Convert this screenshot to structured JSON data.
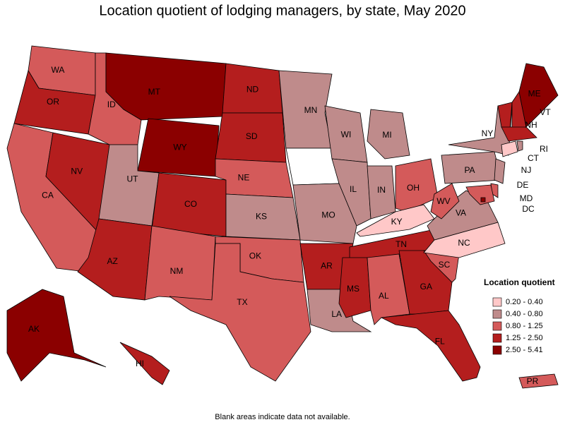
{
  "title": "Location quotient of lodging managers, by state, May 2020",
  "footnote": "Blank areas indicate data not available.",
  "legend": {
    "title": "Location quotient",
    "classes": [
      {
        "label": "0.20 - 0.40",
        "color": "#ffc8c8"
      },
      {
        "label": "0.40 - 0.80",
        "color": "#bf8b8b"
      },
      {
        "label": "0.80 - 1.25",
        "color": "#d45a5a"
      },
      {
        "label": "1.25 - 2.50",
        "color": "#b41e1e"
      },
      {
        "label": "2.50 - 5.41",
        "color": "#8b0000"
      }
    ]
  },
  "states": [
    {
      "label": "WA",
      "class": 2
    },
    {
      "label": "OR",
      "class": 3
    },
    {
      "label": "CA",
      "class": 2
    },
    {
      "label": "NV",
      "class": 3
    },
    {
      "label": "ID",
      "class": 2
    },
    {
      "label": "MT",
      "class": 4
    },
    {
      "label": "WY",
      "class": 4
    },
    {
      "label": "UT",
      "class": 1
    },
    {
      "label": "AZ",
      "class": 3
    },
    {
      "label": "CO",
      "class": 3
    },
    {
      "label": "NM",
      "class": 2
    },
    {
      "label": "ND",
      "class": 3
    },
    {
      "label": "SD",
      "class": 3
    },
    {
      "label": "NE",
      "class": 2
    },
    {
      "label": "KS",
      "class": 1
    },
    {
      "label": "OK",
      "class": 2
    },
    {
      "label": "TX",
      "class": 2
    },
    {
      "label": "MN",
      "class": 1
    },
    {
      "label": null,
      "class": null
    },
    {
      "label": "MO",
      "class": 1
    },
    {
      "label": "AR",
      "class": 3
    },
    {
      "label": "LA",
      "class": 1
    },
    {
      "label": "WI",
      "class": 1
    },
    {
      "label": "IL",
      "class": 1
    },
    {
      "label": "MI",
      "class": 1
    },
    {
      "label": "IN",
      "class": 1
    },
    {
      "label": "OH",
      "class": 2
    },
    {
      "label": "KY",
      "class": 0
    },
    {
      "label": "TN",
      "class": 3
    },
    {
      "label": "MS",
      "class": 3
    },
    {
      "label": "AL",
      "class": 2
    },
    {
      "label": "GA",
      "class": 3
    },
    {
      "label": "FL",
      "class": 3
    },
    {
      "label": "SC",
      "class": 2
    },
    {
      "label": "NC",
      "class": 0
    },
    {
      "label": "VA",
      "class": 1
    },
    {
      "label": "WV",
      "class": 2
    },
    {
      "label": "PA",
      "class": 1
    },
    {
      "label": "NY",
      "class": 1
    },
    {
      "label": "VT",
      "class": 3
    },
    {
      "label": "NH",
      "class": 3
    },
    {
      "label": "ME",
      "class": 4
    },
    {
      "label": null,
      "class": 3
    },
    {
      "label": "CT",
      "class": 0
    },
    {
      "label": "RI",
      "class": 1
    },
    {
      "label": "NJ",
      "class": 1
    },
    {
      "label": "DE",
      "class": 2
    },
    {
      "label": "MD",
      "class": 2
    },
    {
      "label": "DC",
      "class": 4
    },
    {
      "label": "AK",
      "class": 4
    },
    {
      "label": "HI",
      "class": 3
    },
    {
      "label": "PR",
      "class": 2
    }
  ]
}
